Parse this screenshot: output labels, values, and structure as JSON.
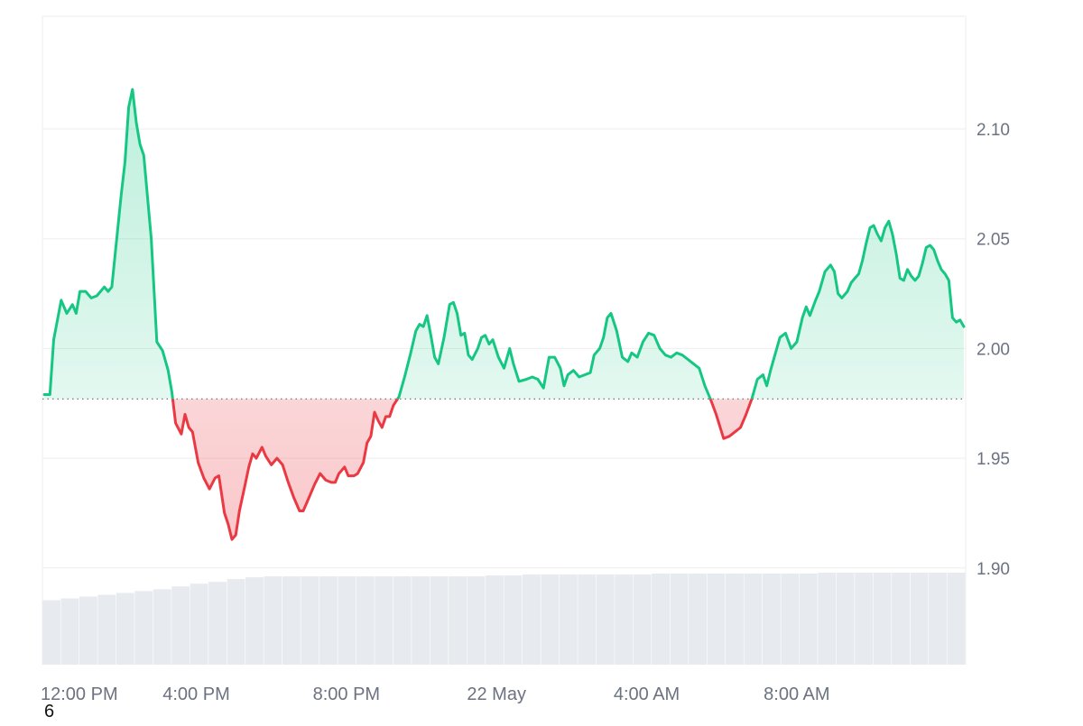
{
  "chart_data": {
    "type": "area",
    "baseline": 1.977,
    "ylim": [
      1.86,
      2.16
    ],
    "y_ticks": [
      "2.10",
      "2.05",
      "2.00",
      "1.95",
      "1.90"
    ],
    "x_ticks": [
      "12:00 PM",
      "4:00 PM",
      "8:00 PM",
      "22 May",
      "4:00 AM",
      "8:00 AM"
    ],
    "x_tick_times_h": [
      0,
      4,
      8,
      12,
      16,
      20
    ],
    "xlim_h": [
      -0.1,
      24.5
    ],
    "grid": true,
    "colors": {
      "up": "#16c784",
      "down": "#ea3943",
      "grid": "#eeeeee",
      "volume": "#e7eaee",
      "label": "#6b7280"
    },
    "series": [
      {
        "points": [
          [
            -0.05,
            1.979
          ],
          [
            0.1,
            1.979
          ],
          [
            0.2,
            2.004
          ],
          [
            0.4,
            2.022
          ],
          [
            0.55,
            2.016
          ],
          [
            0.7,
            2.02
          ],
          [
            0.8,
            2.016
          ],
          [
            0.9,
            2.026
          ],
          [
            1.05,
            2.026
          ],
          [
            1.2,
            2.023
          ],
          [
            1.35,
            2.024
          ],
          [
            1.55,
            2.028
          ],
          [
            1.65,
            2.026
          ],
          [
            1.75,
            2.028
          ],
          [
            1.85,
            2.045
          ],
          [
            2.0,
            2.07
          ],
          [
            2.1,
            2.085
          ],
          [
            2.2,
            2.11
          ],
          [
            2.3,
            2.118
          ],
          [
            2.4,
            2.103
          ],
          [
            2.5,
            2.093
          ],
          [
            2.6,
            2.088
          ],
          [
            2.8,
            2.05
          ],
          [
            2.95,
            2.003
          ],
          [
            3.1,
            1.999
          ],
          [
            3.25,
            1.99
          ],
          [
            3.35,
            1.98
          ],
          [
            3.45,
            1.966
          ],
          [
            3.6,
            1.961
          ],
          [
            3.7,
            1.97
          ],
          [
            3.8,
            1.964
          ],
          [
            3.9,
            1.962
          ],
          [
            4.05,
            1.948
          ],
          [
            4.2,
            1.941
          ],
          [
            4.35,
            1.936
          ],
          [
            4.5,
            1.941
          ],
          [
            4.6,
            1.942
          ],
          [
            4.75,
            1.925
          ],
          [
            4.85,
            1.92
          ],
          [
            4.95,
            1.913
          ],
          [
            5.05,
            1.915
          ],
          [
            5.15,
            1.926
          ],
          [
            5.3,
            1.938
          ],
          [
            5.4,
            1.946
          ],
          [
            5.5,
            1.952
          ],
          [
            5.6,
            1.95
          ],
          [
            5.75,
            1.955
          ],
          [
            5.85,
            1.951
          ],
          [
            6.0,
            1.947
          ],
          [
            6.15,
            1.95
          ],
          [
            6.3,
            1.947
          ],
          [
            6.45,
            1.939
          ],
          [
            6.6,
            1.932
          ],
          [
            6.75,
            1.926
          ],
          [
            6.85,
            1.926
          ],
          [
            7.0,
            1.932
          ],
          [
            7.15,
            1.938
          ],
          [
            7.3,
            1.943
          ],
          [
            7.45,
            1.94
          ],
          [
            7.6,
            1.939
          ],
          [
            7.7,
            1.939
          ],
          [
            7.8,
            1.943
          ],
          [
            7.95,
            1.946
          ],
          [
            8.05,
            1.942
          ],
          [
            8.2,
            1.942
          ],
          [
            8.3,
            1.943
          ],
          [
            8.45,
            1.948
          ],
          [
            8.55,
            1.957
          ],
          [
            8.65,
            1.96
          ],
          [
            8.75,
            1.971
          ],
          [
            8.85,
            1.967
          ],
          [
            8.95,
            1.964
          ],
          [
            9.05,
            1.969
          ],
          [
            9.15,
            1.969
          ],
          [
            9.25,
            1.974
          ],
          [
            9.4,
            1.978
          ],
          [
            9.55,
            1.987
          ],
          [
            9.7,
            1.997
          ],
          [
            9.85,
            2.008
          ],
          [
            9.95,
            2.011
          ],
          [
            10.05,
            2.01
          ],
          [
            10.15,
            2.015
          ],
          [
            10.25,
            2.006
          ],
          [
            10.35,
            1.996
          ],
          [
            10.45,
            1.993
          ],
          [
            10.6,
            2.005
          ],
          [
            10.75,
            2.02
          ],
          [
            10.85,
            2.021
          ],
          [
            10.95,
            2.016
          ],
          [
            11.05,
            2.006
          ],
          [
            11.15,
            2.007
          ],
          [
            11.25,
            1.997
          ],
          [
            11.35,
            1.995
          ],
          [
            11.5,
            2.0
          ],
          [
            11.6,
            2.005
          ],
          [
            11.7,
            2.006
          ],
          [
            11.8,
            2.002
          ],
          [
            11.9,
            2.004
          ],
          [
            12.05,
            1.996
          ],
          [
            12.2,
            1.991
          ],
          [
            12.35,
            2.0
          ],
          [
            12.45,
            1.993
          ],
          [
            12.6,
            1.985
          ],
          [
            12.8,
            1.986
          ],
          [
            12.95,
            1.987
          ],
          [
            13.1,
            1.986
          ],
          [
            13.25,
            1.982
          ],
          [
            13.4,
            1.996
          ],
          [
            13.55,
            1.996
          ],
          [
            13.7,
            1.991
          ],
          [
            13.8,
            1.983
          ],
          [
            13.9,
            1.988
          ],
          [
            14.05,
            1.99
          ],
          [
            14.2,
            1.987
          ],
          [
            14.35,
            1.988
          ],
          [
            14.5,
            1.989
          ],
          [
            14.6,
            1.997
          ],
          [
            14.75,
            2.0
          ],
          [
            14.85,
            2.005
          ],
          [
            14.95,
            2.014
          ],
          [
            15.05,
            2.016
          ],
          [
            15.2,
            2.008
          ],
          [
            15.35,
            1.996
          ],
          [
            15.5,
            1.994
          ],
          [
            15.6,
            1.998
          ],
          [
            15.75,
            1.996
          ],
          [
            15.9,
            2.003
          ],
          [
            16.05,
            2.007
          ],
          [
            16.2,
            2.006
          ],
          [
            16.35,
            2.0
          ],
          [
            16.5,
            1.997
          ],
          [
            16.65,
            1.996
          ],
          [
            16.8,
            1.998
          ],
          [
            16.95,
            1.997
          ],
          [
            17.1,
            1.995
          ],
          [
            17.25,
            1.993
          ],
          [
            17.4,
            1.991
          ],
          [
            17.55,
            1.983
          ],
          [
            17.7,
            1.977
          ],
          [
            17.85,
            1.97
          ],
          [
            18.05,
            1.959
          ],
          [
            18.2,
            1.96
          ],
          [
            18.35,
            1.962
          ],
          [
            18.5,
            1.964
          ],
          [
            18.65,
            1.97
          ],
          [
            18.8,
            1.977
          ],
          [
            18.95,
            1.986
          ],
          [
            19.1,
            1.988
          ],
          [
            19.2,
            1.983
          ],
          [
            19.3,
            1.99
          ],
          [
            19.45,
            1.999
          ],
          [
            19.55,
            2.005
          ],
          [
            19.7,
            2.007
          ],
          [
            19.85,
            2.0
          ],
          [
            20.0,
            2.003
          ],
          [
            20.15,
            2.014
          ],
          [
            20.25,
            2.019
          ],
          [
            20.35,
            2.015
          ],
          [
            20.5,
            2.022
          ],
          [
            20.6,
            2.026
          ],
          [
            20.75,
            2.035
          ],
          [
            20.9,
            2.038
          ],
          [
            21.0,
            2.035
          ],
          [
            21.1,
            2.025
          ],
          [
            21.2,
            2.023
          ],
          [
            21.35,
            2.026
          ],
          [
            21.45,
            2.03
          ],
          [
            21.55,
            2.032
          ],
          [
            21.65,
            2.034
          ],
          [
            21.75,
            2.04
          ],
          [
            21.85,
            2.048
          ],
          [
            21.95,
            2.055
          ],
          [
            22.05,
            2.056
          ],
          [
            22.15,
            2.052
          ],
          [
            22.25,
            2.049
          ],
          [
            22.35,
            2.055
          ],
          [
            22.45,
            2.058
          ],
          [
            22.55,
            2.052
          ],
          [
            22.65,
            2.043
          ],
          [
            22.75,
            2.032
          ],
          [
            22.85,
            2.031
          ],
          [
            22.95,
            2.036
          ],
          [
            23.05,
            2.033
          ],
          [
            23.15,
            2.031
          ],
          [
            23.25,
            2.033
          ],
          [
            23.35,
            2.039
          ],
          [
            23.45,
            2.046
          ],
          [
            23.55,
            2.047
          ],
          [
            23.65,
            2.045
          ],
          [
            23.75,
            2.04
          ],
          [
            23.85,
            2.036
          ],
          [
            23.95,
            2.034
          ],
          [
            24.05,
            2.031
          ],
          [
            24.15,
            2.014
          ],
          [
            24.25,
            2.012
          ],
          [
            24.35,
            2.013
          ],
          [
            24.45,
            2.01
          ]
        ]
      },
      {
        "name": "volume",
        "values_relative": [
          0.7,
          0.72,
          0.74,
          0.76,
          0.78,
          0.8,
          0.82,
          0.85,
          0.88,
          0.9,
          0.93,
          0.95,
          0.96,
          0.96,
          0.96,
          0.96,
          0.96,
          0.96,
          0.96,
          0.96,
          0.96,
          0.96,
          0.96,
          0.96,
          0.97,
          0.97,
          0.98,
          0.98,
          0.98,
          0.98,
          0.98,
          0.98,
          0.98,
          0.99,
          0.99,
          0.99,
          0.99,
          0.99,
          0.99,
          0.99,
          0.99,
          0.99,
          1.0,
          1.0,
          1.0,
          1.0,
          1.0,
          1.0,
          1.0,
          1.0
        ]
      }
    ]
  },
  "footer": {
    "mark": "6"
  }
}
